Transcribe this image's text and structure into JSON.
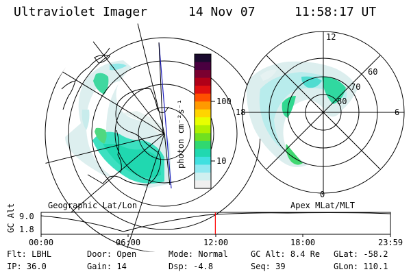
{
  "header": {
    "instrument": "Ultraviolet Imager",
    "date": "14 Nov 07",
    "time": "11:58:17 UT"
  },
  "colorbar": {
    "unit_label": "photon cm⁻²s⁻¹",
    "ticks": [
      "100",
      "10"
    ],
    "colors": [
      "#1a0a2e",
      "#4a0040",
      "#7a0030",
      "#b00018",
      "#e01010",
      "#ff5000",
      "#ff9a00",
      "#ffd400",
      "#e8ff00",
      "#b0f000",
      "#70e020",
      "#30d870",
      "#20d8b0",
      "#40e0e0",
      "#90e8f0",
      "#d0f0f0",
      "#f0f0f0"
    ]
  },
  "panels": {
    "left_caption": "Geographic Lat/Lon",
    "right_caption": "Apex MLat/MLT"
  },
  "polar": {
    "mlt_labels": {
      "top": "12",
      "left": "18",
      "right": "6",
      "bottom": "0"
    },
    "lat_labels": [
      "60",
      "70",
      "80"
    ]
  },
  "timeline": {
    "ylabel": "GC Alt",
    "yticks": [
      "9.0",
      "1.8"
    ],
    "xticks": [
      "00:00",
      "06:00",
      "12:00",
      "18:00",
      "23:59"
    ],
    "marker_color": "#ff0000",
    "marker_time_hours": 11.97
  },
  "info": {
    "row1": [
      {
        "label": "Flt:",
        "value": "LBHL"
      },
      {
        "label": "Door:",
        "value": "Open"
      },
      {
        "label": "Mode:",
        "value": "Normal"
      },
      {
        "label": "GC Alt:",
        "value": "8.4 Re"
      },
      {
        "label": "GLat:",
        "value": "-58.2"
      }
    ],
    "row2": [
      {
        "label": "IP:",
        "value": "36.0"
      },
      {
        "label": "Gain:",
        "value": "14"
      },
      {
        "label": "Dsp:",
        "value": "-4.8"
      },
      {
        "label": "Seq:",
        "value": "39"
      },
      {
        "label": "GLon:",
        "value": "110.1"
      }
    ]
  }
}
